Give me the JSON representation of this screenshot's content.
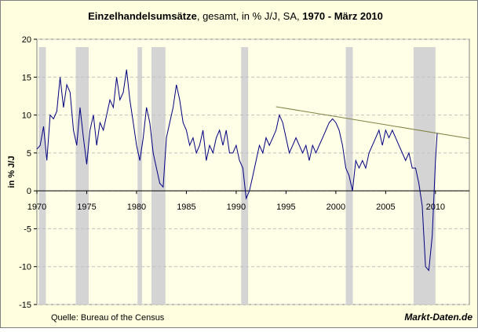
{
  "chart_data": {
    "type": "line",
    "title_parts": [
      {
        "text": "Einzelhandelsumsätze",
        "bold": true
      },
      {
        "text": ", gesamt, in % J/J, SA, ",
        "bold": false
      },
      {
        "text": "1970 - März 2010",
        "bold": true
      }
    ],
    "y_label": "in % J/J",
    "source": "Quelle: Bureau of the Census",
    "brand": "Markt-Daten.de",
    "xlim": [
      1970,
      2013.4
    ],
    "ylim": [
      -15,
      20
    ],
    "xticks": [
      1970,
      1975,
      1980,
      1985,
      1990,
      1995,
      2000,
      2005,
      2010
    ],
    "yticks": [
      -15,
      -10,
      -5,
      0,
      5,
      10,
      15,
      20
    ],
    "grid": true,
    "x": [
      1970,
      1970.33,
      1970.67,
      1971,
      1971.33,
      1971.67,
      1972,
      1972.33,
      1972.67,
      1973,
      1973.33,
      1973.67,
      1974,
      1974.33,
      1974.67,
      1975,
      1975.33,
      1975.67,
      1976,
      1976.33,
      1976.67,
      1977,
      1977.33,
      1977.67,
      1978,
      1978.33,
      1978.67,
      1979,
      1979.33,
      1979.67,
      1980,
      1980.33,
      1980.67,
      1981,
      1981.33,
      1981.67,
      1982,
      1982.33,
      1982.67,
      1983,
      1983.33,
      1983.67,
      1984,
      1984.33,
      1984.67,
      1985,
      1985.33,
      1985.67,
      1986,
      1986.33,
      1986.67,
      1987,
      1987.33,
      1987.67,
      1988,
      1988.33,
      1988.67,
      1989,
      1989.33,
      1989.67,
      1990,
      1990.33,
      1990.67,
      1991,
      1991.33,
      1991.67,
      1992,
      1992.33,
      1992.67,
      1993,
      1993.33,
      1993.67,
      1994,
      1994.33,
      1994.67,
      1995,
      1995.33,
      1995.67,
      1996,
      1996.33,
      1996.67,
      1997,
      1997.33,
      1997.67,
      1998,
      1998.33,
      1998.67,
      1999,
      1999.33,
      1999.67,
      2000,
      2000.33,
      2000.67,
      2001,
      2001.33,
      2001.67,
      2002,
      2002.33,
      2002.67,
      2003,
      2003.33,
      2003.67,
      2004,
      2004.33,
      2004.67,
      2005,
      2005.33,
      2005.67,
      2006,
      2006.33,
      2006.67,
      2007,
      2007.33,
      2007.67,
      2008,
      2008.33,
      2008.67,
      2009,
      2009.33,
      2009.67,
      2010,
      2010.17
    ],
    "series": [
      {
        "color": "#000080",
        "values": [
          5.5,
          6,
          8.5,
          4,
          10,
          9.5,
          10.5,
          15,
          11,
          14,
          13,
          8,
          6,
          11,
          7,
          3.5,
          8,
          10,
          6,
          9,
          8,
          10,
          12,
          11,
          15,
          12,
          13,
          16,
          12,
          9,
          6,
          4,
          7,
          11,
          9,
          5,
          3,
          1,
          0.5,
          7,
          9,
          11,
          14,
          12,
          9,
          8,
          6,
          7,
          5,
          6,
          8,
          4,
          6,
          5,
          7,
          8,
          6,
          8,
          5,
          5,
          6,
          4,
          3,
          -1,
          0,
          2,
          4,
          6,
          5,
          7,
          6,
          7,
          8,
          10,
          9,
          7,
          5,
          6,
          7,
          6,
          5,
          6,
          4,
          6,
          5,
          6,
          7,
          8,
          9,
          9.5,
          9,
          8,
          6,
          3,
          2,
          0,
          4,
          3,
          4,
          3,
          5,
          6,
          7,
          8,
          6,
          8,
          7,
          8,
          7,
          6,
          5,
          4,
          5,
          3,
          3,
          1,
          -2,
          -10,
          -10.5,
          -6,
          4,
          7.6
        ]
      }
    ],
    "shaded_periods": [
      [
        1970.2,
        1970.9
      ],
      [
        1973.9,
        1975.2
      ],
      [
        1980.1,
        1980.55
      ],
      [
        1981.5,
        1982.9
      ],
      [
        1990.5,
        1991.2
      ],
      [
        2001.0,
        2001.7
      ],
      [
        2007.8,
        2010.0
      ]
    ],
    "trendline": {
      "color": "#808040",
      "x": [
        1994,
        2013.4
      ],
      "y": [
        11.1,
        6.9
      ]
    }
  }
}
